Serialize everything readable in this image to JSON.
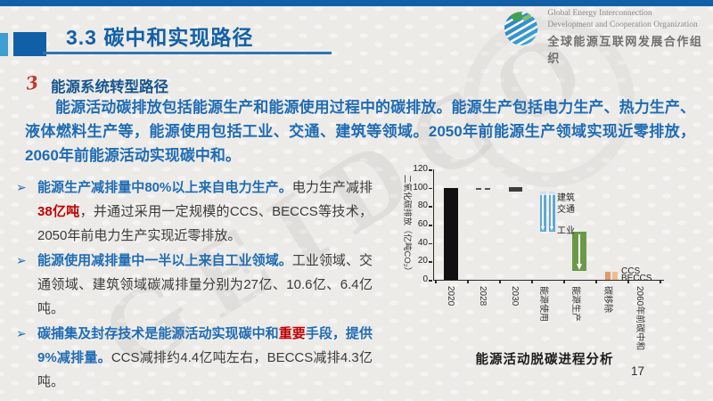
{
  "page": {
    "title": "3.3 碳中和实现路径",
    "page_number": "17",
    "watermark": "GEIDCO"
  },
  "logo": {
    "en1": "Global Energy Interconnection",
    "en2": "Development and Cooperation Organization",
    "cn": "全球能源互联网发展合作组织"
  },
  "section": {
    "marker": "3",
    "heading": "能源系统转型路径",
    "intro": "能源活动碳排放包括能源生产和能源使用过程中的碳排放。能源生产包括电力生产、热力生产、液体燃料生产等，能源使用包括工业、交通、建筑等领域。2050年前能源生产领域实现近零排放，2060年前能源活动实现碳中和。"
  },
  "bullets": {
    "marker": "➢",
    "items": [
      {
        "segments": [
          {
            "t": "能源生产减排量中80%以上来自电力生产。",
            "c": "blue"
          },
          {
            "t": "电力生产减排",
            "c": "dark"
          },
          {
            "t": "38亿吨",
            "c": "red"
          },
          {
            "t": "，并通过采用一定规模的CCS、BECCS等技术，2050年前电力生产实现近零排放。",
            "c": "dark"
          }
        ]
      },
      {
        "segments": [
          {
            "t": "能源使用减排量中一半以上来自工业领域。",
            "c": "blue"
          },
          {
            "t": "工业领域、交通领域、建筑领域碳减排量分别为27亿、10.6亿、6.4亿吨。",
            "c": "dark"
          }
        ]
      },
      {
        "segments": [
          {
            "t": "碳捕集及封存技术是能源活动实现碳中和",
            "c": "blue"
          },
          {
            "t": "重要",
            "c": "red"
          },
          {
            "t": "手段，提供9%减排量。",
            "c": "blue"
          },
          {
            "t": "CCS减排约4.4亿吨左右，BECCS减排4.3亿吨。",
            "c": "dark"
          }
        ]
      }
    ]
  },
  "chart_data": {
    "type": "bar",
    "subtype": "waterfall-decarbonization",
    "title": "能源活动脱碳进程分析",
    "ylabel": "二氧化碳排放（亿吨CO₂）",
    "ylim": [
      0,
      120
    ],
    "yticks": [
      0,
      20,
      40,
      60,
      80,
      100,
      120
    ],
    "categories": [
      "2020",
      "2028",
      "2030",
      "能源使用",
      "能源生产",
      "碳移除",
      "2060年前碳中和"
    ],
    "bars": [
      {
        "category": "2020",
        "from": 0,
        "to": 100,
        "style": "solid",
        "color": "#111111",
        "width": 16
      },
      {
        "category": "2028",
        "from": 100,
        "to": 100,
        "style": "dashes",
        "color": "#555555"
      },
      {
        "category": "2030",
        "from": 96,
        "to": 100.5,
        "style": "solid",
        "color": "#3d3d3d",
        "width": 15
      },
      {
        "category": "能源使用",
        "from": 52,
        "to": 96,
        "style": "double-arrow",
        "color": "#5fa8d3",
        "cap_color": "#c9e2f2",
        "segment_labels": [
          "建筑",
          "交通",
          "工业"
        ],
        "segment_values": [
          6.4,
          10.6,
          27
        ]
      },
      {
        "category": "能源生产",
        "from": 10,
        "to": 52,
        "style": "arrow",
        "color": "#6a9a48",
        "width": 16
      },
      {
        "category": "碳移除",
        "from": 0,
        "to": 9,
        "style": "double-small",
        "color": "#e2996b",
        "color2": "#edbd92",
        "segment_labels": [
          "CCS",
          "BECCS"
        ],
        "segment_values": [
          4.4,
          4.3
        ]
      },
      {
        "category": "2060年前碳中和",
        "from": 0,
        "to": 0,
        "style": "none",
        "color": "transparent"
      }
    ],
    "annotations": [
      {
        "text": "建筑",
        "near": "能源使用",
        "value": 93
      },
      {
        "text": "交通",
        "near": "能源使用",
        "value": 80
      },
      {
        "text": "工业",
        "near": "能源使用",
        "value": 57
      },
      {
        "text": "CCS",
        "near": "碳移除",
        "value": 10
      },
      {
        "text": "BECCS",
        "near": "碳移除",
        "value": 2
      }
    ]
  },
  "colors": {
    "accent_blue": "#1160a7",
    "text_blue": "#1f6cb4",
    "highlight_red": "#c00000",
    "bar_black": "#111111",
    "bar_blue": "#5fa8d3",
    "bar_green": "#6a9a48",
    "bar_orange": "#e2996b"
  }
}
